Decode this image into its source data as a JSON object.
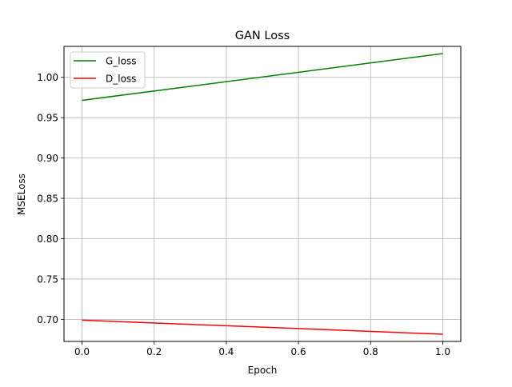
{
  "chart_data": {
    "type": "line",
    "title": "GAN Loss",
    "xlabel": "Epoch",
    "ylabel": "MSELoss",
    "x": [
      0.0,
      1.0
    ],
    "series": [
      {
        "name": "G_loss",
        "color": "#008000",
        "values": [
          0.9715,
          1.0295
        ]
      },
      {
        "name": "D_loss",
        "color": "#ff0000",
        "values": [
          0.699,
          0.6815
        ]
      }
    ],
    "xlim": [
      -0.05,
      1.05
    ],
    "ylim": [
      0.6726,
      1.0384
    ],
    "xticks": [
      0.0,
      0.2,
      0.4,
      0.6,
      0.8,
      1.0
    ],
    "xtick_labels": [
      "0.0",
      "0.2",
      "0.4",
      "0.6",
      "0.8",
      "1.0"
    ],
    "yticks": [
      0.7,
      0.75,
      0.8,
      0.85,
      0.9,
      0.95,
      1.0
    ],
    "ytick_labels": [
      "0.70",
      "0.75",
      "0.80",
      "0.85",
      "0.90",
      "0.95",
      "1.00"
    ],
    "grid": true,
    "legend_position": "upper-left"
  }
}
